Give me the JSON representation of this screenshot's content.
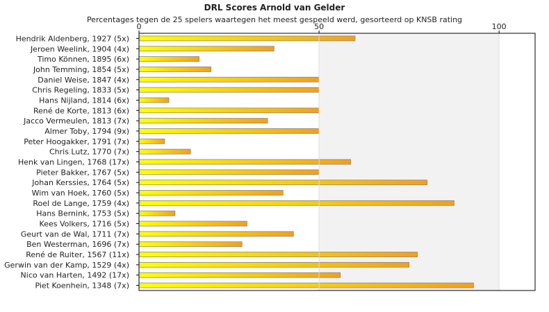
{
  "chart_data": {
    "type": "bar",
    "orientation": "horizontal",
    "title": "DRL Scores Arnold van Gelder",
    "subtitle": "Percentages tegen de 25 spelers waartegen het meest gespeeld werd, gesorteerd op KNSB rating",
    "xlim": [
      0,
      110
    ],
    "xticks": [
      0,
      50,
      100
    ],
    "grid": false,
    "legend": "none",
    "colors": {
      "bar_start": "#ffff00",
      "bar_end": "#f0a020",
      "bar_border": "#888888",
      "band_light": "#ffffff",
      "band_shaded": "#f2f2f2"
    },
    "categories": [
      "Hendrik Aldenberg, 1927 (5x)",
      "Jeroen Weelink, 1904 (4x)",
      "Timo Können, 1895 (6x)",
      "John Temming, 1854 (5x)",
      "Daniel Weise, 1847 (4x)",
      "Chris Regeling, 1833 (5x)",
      "Hans Nijland, 1814 (6x)",
      "René de Korte, 1813 (6x)",
      "Jacco Vermeulen, 1813 (7x)",
      "Almer Toby, 1794 (9x)",
      "Peter Hoogakker, 1791 (7x)",
      "Chris Lutz, 1770 (7x)",
      "Henk van Lingen, 1768 (17x)",
      "Pieter Bakker, 1767 (5x)",
      "Johan Kerssies, 1764 (5x)",
      "Wim van Hoek, 1760 (5x)",
      "Roel de Lange, 1759 (4x)",
      "Hans Bernink, 1753 (5x)",
      "Kees Volkers, 1716 (5x)",
      "Geurt van de Wal, 1711 (7x)",
      "Ben Westerman, 1696 (7x)",
      "René de Ruiter, 1567 (11x)",
      "Gerwin van der Kamp, 1529 (4x)",
      "Nico van Harten, 1492 (17x)",
      "Piet Koenhein, 1348 (7x)"
    ],
    "values": [
      60,
      37.5,
      16.7,
      20,
      50,
      50,
      8.3,
      50,
      35.7,
      50,
      7.1,
      14.3,
      58.8,
      50,
      80,
      40,
      87.5,
      10,
      30,
      42.9,
      28.6,
      77.3,
      75,
      55.9,
      92.9
    ]
  }
}
